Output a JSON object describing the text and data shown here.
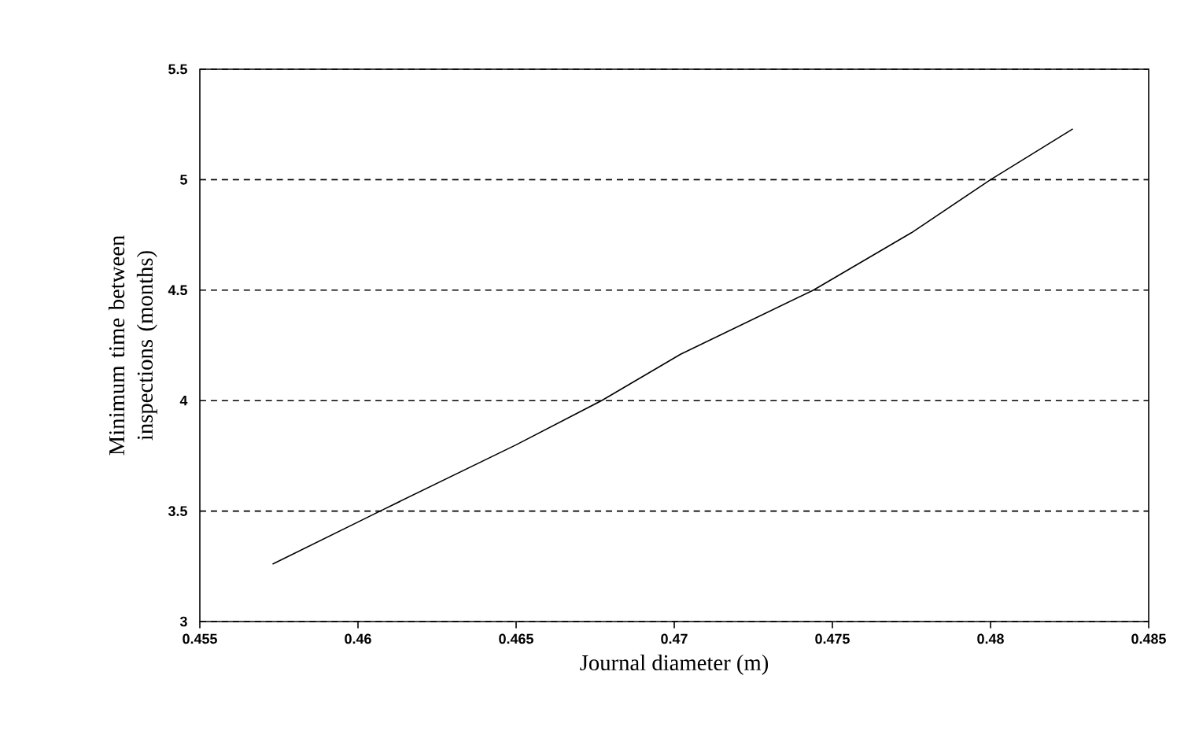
{
  "chart_data": {
    "type": "line",
    "xlabel": "Journal diameter (m)",
    "ylabel": "Minimum time between inspections (months)",
    "x": [
      0.4573,
      0.4607,
      0.465,
      0.4677,
      0.4702,
      0.4744,
      0.4775,
      0.48,
      0.4826
    ],
    "values": [
      3.26,
      3.5,
      3.8,
      4.0,
      4.21,
      4.5,
      4.76,
      5.0,
      5.23
    ],
    "color": "#000000",
    "xlim": [
      0.455,
      0.485
    ],
    "ylim": [
      3,
      5.5
    ],
    "xticks": [
      0.455,
      0.46,
      0.465,
      0.47,
      0.475,
      0.48,
      0.485
    ],
    "yticks": [
      3,
      3.5,
      4,
      4.5,
      5,
      5.5
    ],
    "grid": "y",
    "line_style": "solid",
    "marker": "none"
  }
}
